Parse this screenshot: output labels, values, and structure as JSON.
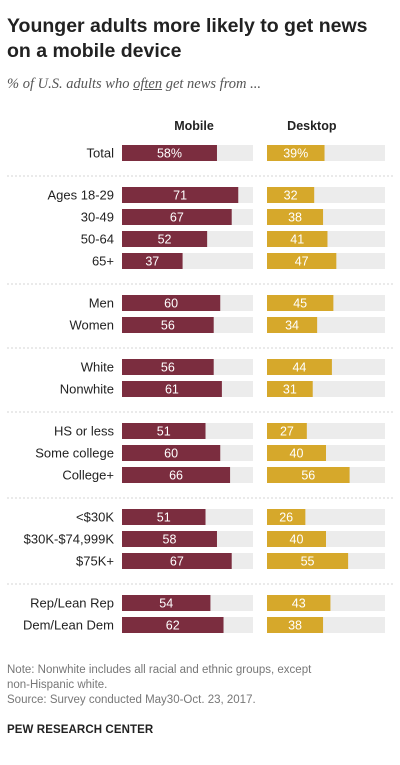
{
  "title": "Younger adults more likely to get news on a mobile device",
  "subtitle": {
    "before": "% of U.S. adults who ",
    "emphasis": "often",
    "after": " get news from ..."
  },
  "note_lines": [
    "Note: Nonwhite includes all racial and ethnic groups, except",
    "non-Hispanic white.",
    "Source: Survey conducted May30-Oct. 23, 2017."
  ],
  "brand": "PEW RESEARCH CENTER",
  "chart_data": {
    "type": "bar",
    "orientation": "horizontal",
    "xlim": [
      0,
      100
    ],
    "series": [
      {
        "name": "Mobile",
        "color": "#7b2d3f",
        "values": [
          58,
          71,
          67,
          52,
          37,
          60,
          56,
          56,
          61,
          51,
          60,
          66,
          51,
          58,
          67,
          54,
          62
        ]
      },
      {
        "name": "Desktop",
        "color": "#d6a82b",
        "values": [
          39,
          32,
          38,
          41,
          47,
          45,
          34,
          44,
          31,
          27,
          40,
          56,
          26,
          40,
          55,
          43,
          38
        ]
      }
    ],
    "groups": [
      {
        "categories": [
          "Total"
        ]
      },
      {
        "categories": [
          "Ages 18-29",
          "30-49",
          "50-64",
          "65+"
        ]
      },
      {
        "categories": [
          "Men",
          "Women"
        ]
      },
      {
        "categories": [
          "White",
          "Nonwhite"
        ]
      },
      {
        "categories": [
          "HS or less",
          "Some college",
          "College+"
        ]
      },
      {
        "categories": [
          "<$30K",
          "$30K-$74,999K",
          "$75K+"
        ]
      },
      {
        "categories": [
          "Rep/Lean Rep",
          "Dem/Lean Dem"
        ]
      }
    ],
    "value_labels": {
      "first_row_suffix": "%"
    },
    "background_track_color": "#ececec",
    "grid": false,
    "legend": "column headers"
  }
}
